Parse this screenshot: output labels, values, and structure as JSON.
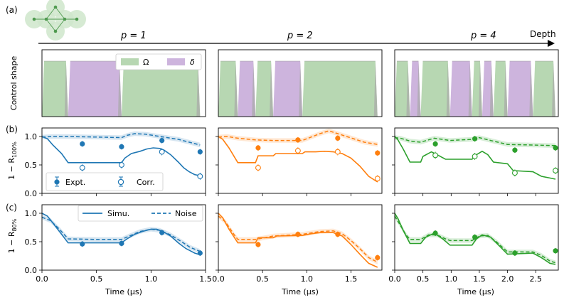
{
  "labels": {
    "a": "(a)",
    "b": "(b)",
    "c": "(c)",
    "depth": "Depth",
    "p_values": [
      "p = 1",
      "p = 2",
      "p = 4"
    ],
    "xlabel": "Time (μs)",
    "ylabel_row1": "Control shape",
    "ylabel_row2": "1 − R",
    "ylabel_row2_sub": "100%",
    "ylabel_row3": "1 − R",
    "ylabel_row3_sub": "80%"
  },
  "legends": {
    "control": {
      "omega": "Ω",
      "delta": "δ"
    },
    "expt": "Expt.",
    "corr": "Corr.",
    "simu": "Simu.",
    "noise": "Noise"
  },
  "colors": {
    "omega": "#b7d7b2",
    "delta": "#cdb4dd",
    "ramp": "#a8a8a8",
    "blue": "#1f77b4",
    "orange": "#ff7f0e",
    "green": "#2ca02c",
    "graph_node": "#4f9a4f",
    "graph_halo": "#cfe6cb"
  },
  "chart_data": [
    {
      "type": "line",
      "panel": "p = 1",
      "color": "blue",
      "xlim": [
        0,
        1.5
      ],
      "xticks": [
        "0.0",
        "0.5",
        "1.0",
        "1.5"
      ],
      "ylim": [
        0,
        1.15
      ],
      "yticks": [
        "0.0",
        "0.5",
        "1.0"
      ],
      "control_segments": [
        {
          "kind": "omega",
          "x": [
            0,
            0.24
          ]
        },
        {
          "kind": "delta",
          "x": [
            0.24,
            0.73
          ]
        },
        {
          "kind": "omega",
          "x": [
            0.73,
            1.45
          ]
        }
      ],
      "r100": {
        "simu": [
          [
            0,
            1.0
          ],
          [
            0.05,
            0.96
          ],
          [
            0.1,
            0.85
          ],
          [
            0.18,
            0.7
          ],
          [
            0.24,
            0.54
          ],
          [
            0.5,
            0.54
          ],
          [
            0.73,
            0.54
          ],
          [
            0.76,
            0.62
          ],
          [
            0.82,
            0.7
          ],
          [
            0.9,
            0.74
          ],
          [
            0.96,
            0.78
          ],
          [
            1.02,
            0.8
          ],
          [
            1.08,
            0.79
          ],
          [
            1.12,
            0.76
          ],
          [
            1.18,
            0.68
          ],
          [
            1.25,
            0.55
          ],
          [
            1.3,
            0.45
          ],
          [
            1.35,
            0.38
          ],
          [
            1.4,
            0.33
          ],
          [
            1.45,
            0.31
          ]
        ],
        "noise": [
          [
            0,
            0.99
          ],
          [
            0.1,
            1.0
          ],
          [
            0.24,
            1.0
          ],
          [
            0.5,
            0.99
          ],
          [
            0.73,
            0.98
          ],
          [
            0.78,
            1.02
          ],
          [
            0.85,
            1.05
          ],
          [
            0.95,
            1.04
          ],
          [
            1.05,
            1.01
          ],
          [
            1.15,
            0.98
          ],
          [
            1.25,
            0.95
          ],
          [
            1.35,
            0.9
          ],
          [
            1.45,
            0.85
          ]
        ],
        "expt": [
          [
            0.37,
            0.87
          ],
          [
            0.73,
            0.82
          ],
          [
            1.1,
            0.93
          ],
          [
            1.45,
            0.73
          ]
        ],
        "corr": [
          [
            0.37,
            0.45
          ],
          [
            0.73,
            0.5
          ],
          [
            1.1,
            0.73
          ],
          [
            1.45,
            0.3
          ]
        ]
      },
      "r80": {
        "simu": [
          [
            0,
            1.0
          ],
          [
            0.05,
            0.95
          ],
          [
            0.12,
            0.78
          ],
          [
            0.2,
            0.58
          ],
          [
            0.24,
            0.48
          ],
          [
            0.5,
            0.48
          ],
          [
            0.73,
            0.48
          ],
          [
            0.78,
            0.55
          ],
          [
            0.85,
            0.63
          ],
          [
            0.92,
            0.68
          ],
          [
            1.0,
            0.72
          ],
          [
            1.05,
            0.72
          ],
          [
            1.1,
            0.69
          ],
          [
            1.18,
            0.6
          ],
          [
            1.25,
            0.48
          ],
          [
            1.32,
            0.38
          ],
          [
            1.4,
            0.3
          ],
          [
            1.45,
            0.27
          ]
        ],
        "noise": [
          [
            0,
            0.93
          ],
          [
            0.08,
            0.87
          ],
          [
            0.16,
            0.72
          ],
          [
            0.24,
            0.55
          ],
          [
            0.5,
            0.54
          ],
          [
            0.73,
            0.54
          ],
          [
            0.8,
            0.6
          ],
          [
            0.9,
            0.68
          ],
          [
            1.0,
            0.72
          ],
          [
            1.08,
            0.7
          ],
          [
            1.18,
            0.62
          ],
          [
            1.28,
            0.5
          ],
          [
            1.36,
            0.4
          ],
          [
            1.45,
            0.33
          ]
        ],
        "expt": [
          [
            0.37,
            0.46
          ],
          [
            0.73,
            0.47
          ],
          [
            1.1,
            0.66
          ],
          [
            1.45,
            0.3
          ]
        ]
      }
    },
    {
      "type": "line",
      "panel": "p = 2",
      "color": "orange",
      "xlim": [
        0,
        1.85
      ],
      "xticks": [
        "0.0",
        "0.5",
        "1.0",
        "1.5"
      ],
      "ylim": [
        0,
        1.15
      ],
      "yticks": [],
      "control_segments": [
        {
          "kind": "omega",
          "x": [
            0,
            0.22
          ]
        },
        {
          "kind": "delta",
          "x": [
            0.22,
            0.42
          ]
        },
        {
          "kind": "omega",
          "x": [
            0.42,
            0.62
          ]
        },
        {
          "kind": "delta",
          "x": [
            0.62,
            0.95
          ]
        },
        {
          "kind": "omega",
          "x": [
            0.95,
            1.8
          ]
        }
      ],
      "r100": {
        "simu": [
          [
            0,
            1.0
          ],
          [
            0.05,
            0.95
          ],
          [
            0.12,
            0.8
          ],
          [
            0.22,
            0.54
          ],
          [
            0.42,
            0.54
          ],
          [
            0.45,
            0.66
          ],
          [
            0.62,
            0.66
          ],
          [
            0.65,
            0.7
          ],
          [
            0.95,
            0.7
          ],
          [
            0.98,
            0.73
          ],
          [
            1.1,
            0.73
          ],
          [
            1.2,
            0.74
          ],
          [
            1.3,
            0.73
          ],
          [
            1.4,
            0.7
          ],
          [
            1.5,
            0.62
          ],
          [
            1.6,
            0.48
          ],
          [
            1.7,
            0.3
          ],
          [
            1.8,
            0.2
          ]
        ],
        "noise": [
          [
            0,
            0.99
          ],
          [
            0.1,
            1.0
          ],
          [
            0.22,
            0.97
          ],
          [
            0.42,
            0.94
          ],
          [
            0.62,
            0.93
          ],
          [
            0.95,
            0.93
          ],
          [
            1.05,
            0.99
          ],
          [
            1.15,
            1.05
          ],
          [
            1.25,
            1.1
          ],
          [
            1.35,
            1.05
          ],
          [
            1.45,
            1.0
          ],
          [
            1.55,
            0.95
          ],
          [
            1.65,
            0.9
          ],
          [
            1.8,
            0.86
          ]
        ],
        "expt": [
          [
            0.45,
            0.8
          ],
          [
            0.9,
            0.94
          ],
          [
            1.35,
            0.97
          ],
          [
            1.8,
            0.71
          ]
        ],
        "corr": [
          [
            0.45,
            0.45
          ],
          [
            0.9,
            0.75
          ],
          [
            1.35,
            0.73
          ],
          [
            1.8,
            0.26
          ]
        ]
      },
      "r80": {
        "simu": [
          [
            0,
            1.0
          ],
          [
            0.05,
            0.92
          ],
          [
            0.12,
            0.72
          ],
          [
            0.22,
            0.48
          ],
          [
            0.42,
            0.48
          ],
          [
            0.45,
            0.57
          ],
          [
            0.62,
            0.57
          ],
          [
            0.66,
            0.6
          ],
          [
            0.95,
            0.61
          ],
          [
            1.05,
            0.64
          ],
          [
            1.15,
            0.66
          ],
          [
            1.3,
            0.66
          ],
          [
            1.4,
            0.6
          ],
          [
            1.5,
            0.45
          ],
          [
            1.6,
            0.28
          ],
          [
            1.7,
            0.12
          ],
          [
            1.8,
            0.05
          ]
        ],
        "noise": [
          [
            0,
            0.95
          ],
          [
            0.08,
            0.85
          ],
          [
            0.18,
            0.62
          ],
          [
            0.22,
            0.54
          ],
          [
            0.42,
            0.54
          ],
          [
            0.62,
            0.6
          ],
          [
            0.95,
            0.63
          ],
          [
            1.15,
            0.68
          ],
          [
            1.3,
            0.69
          ],
          [
            1.4,
            0.64
          ],
          [
            1.5,
            0.52
          ],
          [
            1.6,
            0.38
          ],
          [
            1.7,
            0.22
          ],
          [
            1.8,
            0.14
          ]
        ],
        "expt": [
          [
            0.45,
            0.45
          ],
          [
            0.9,
            0.63
          ],
          [
            1.35,
            0.63
          ],
          [
            1.8,
            0.22
          ]
        ]
      }
    },
    {
      "type": "line",
      "panel": "p = 4",
      "color": "green",
      "xlim": [
        0,
        2.9
      ],
      "xticks": [
        "0.0",
        "0.5",
        "1.0",
        "1.5",
        "2.0",
        "2.5"
      ],
      "ylim": [
        0,
        1.15
      ],
      "yticks": [],
      "control_segments": [
        {
          "kind": "omega",
          "x": [
            0,
            0.27
          ]
        },
        {
          "kind": "delta",
          "x": [
            0.27,
            0.46
          ]
        },
        {
          "kind": "omega",
          "x": [
            0.46,
            0.98
          ]
        },
        {
          "kind": "delta",
          "x": [
            0.98,
            1.37
          ]
        },
        {
          "kind": "omega",
          "x": [
            1.37,
            1.55
          ]
        },
        {
          "kind": "delta",
          "x": [
            1.55,
            1.75
          ]
        },
        {
          "kind": "omega",
          "x": [
            1.75,
            2.0
          ]
        },
        {
          "kind": "delta",
          "x": [
            2.0,
            2.45
          ]
        },
        {
          "kind": "omega",
          "x": [
            2.45,
            2.85
          ]
        }
      ],
      "r100": {
        "simu": [
          [
            0,
            1.0
          ],
          [
            0.05,
            0.95
          ],
          [
            0.15,
            0.78
          ],
          [
            0.27,
            0.55
          ],
          [
            0.46,
            0.55
          ],
          [
            0.5,
            0.65
          ],
          [
            0.65,
            0.73
          ],
          [
            0.75,
            0.68
          ],
          [
            0.9,
            0.6
          ],
          [
            0.98,
            0.6
          ],
          [
            1.37,
            0.6
          ],
          [
            1.45,
            0.68
          ],
          [
            1.55,
            0.74
          ],
          [
            1.65,
            0.68
          ],
          [
            1.75,
            0.55
          ],
          [
            2.0,
            0.52
          ],
          [
            2.1,
            0.4
          ],
          [
            2.45,
            0.38
          ],
          [
            2.6,
            0.3
          ],
          [
            2.75,
            0.27
          ],
          [
            2.85,
            0.25
          ]
        ],
        "noise": [
          [
            0,
            0.98
          ],
          [
            0.1,
            0.97
          ],
          [
            0.27,
            0.92
          ],
          [
            0.46,
            0.9
          ],
          [
            0.7,
            0.97
          ],
          [
            0.98,
            0.93
          ],
          [
            1.37,
            0.95
          ],
          [
            1.5,
            0.98
          ],
          [
            1.7,
            0.93
          ],
          [
            2.0,
            0.86
          ],
          [
            2.45,
            0.85
          ],
          [
            2.85,
            0.84
          ]
        ],
        "expt": [
          [
            0.72,
            0.87
          ],
          [
            1.42,
            0.96
          ],
          [
            2.13,
            0.76
          ],
          [
            2.85,
            0.8
          ]
        ],
        "corr": [
          [
            0.72,
            0.67
          ],
          [
            1.42,
            0.65
          ],
          [
            2.13,
            0.36
          ],
          [
            2.85,
            0.4
          ]
        ]
      },
      "r80": {
        "simu": [
          [
            0,
            1.0
          ],
          [
            0.06,
            0.9
          ],
          [
            0.15,
            0.7
          ],
          [
            0.27,
            0.47
          ],
          [
            0.46,
            0.47
          ],
          [
            0.55,
            0.58
          ],
          [
            0.7,
            0.65
          ],
          [
            0.85,
            0.55
          ],
          [
            0.98,
            0.44
          ],
          [
            1.37,
            0.44
          ],
          [
            1.45,
            0.55
          ],
          [
            1.55,
            0.62
          ],
          [
            1.7,
            0.58
          ],
          [
            1.8,
            0.48
          ],
          [
            2.0,
            0.28
          ],
          [
            2.45,
            0.3
          ],
          [
            2.6,
            0.22
          ],
          [
            2.75,
            0.12
          ],
          [
            2.85,
            0.1
          ]
        ],
        "noise": [
          [
            0,
            0.95
          ],
          [
            0.08,
            0.82
          ],
          [
            0.2,
            0.62
          ],
          [
            0.27,
            0.54
          ],
          [
            0.46,
            0.54
          ],
          [
            0.6,
            0.62
          ],
          [
            0.75,
            0.62
          ],
          [
            0.9,
            0.55
          ],
          [
            0.98,
            0.52
          ],
          [
            1.37,
            0.52
          ],
          [
            1.5,
            0.6
          ],
          [
            1.65,
            0.61
          ],
          [
            1.8,
            0.5
          ],
          [
            2.0,
            0.32
          ],
          [
            2.45,
            0.32
          ],
          [
            2.6,
            0.26
          ],
          [
            2.75,
            0.16
          ],
          [
            2.85,
            0.13
          ]
        ],
        "expt": [
          [
            0.72,
            0.65
          ],
          [
            1.42,
            0.58
          ],
          [
            2.13,
            0.3
          ],
          [
            2.85,
            0.34
          ]
        ]
      }
    }
  ]
}
